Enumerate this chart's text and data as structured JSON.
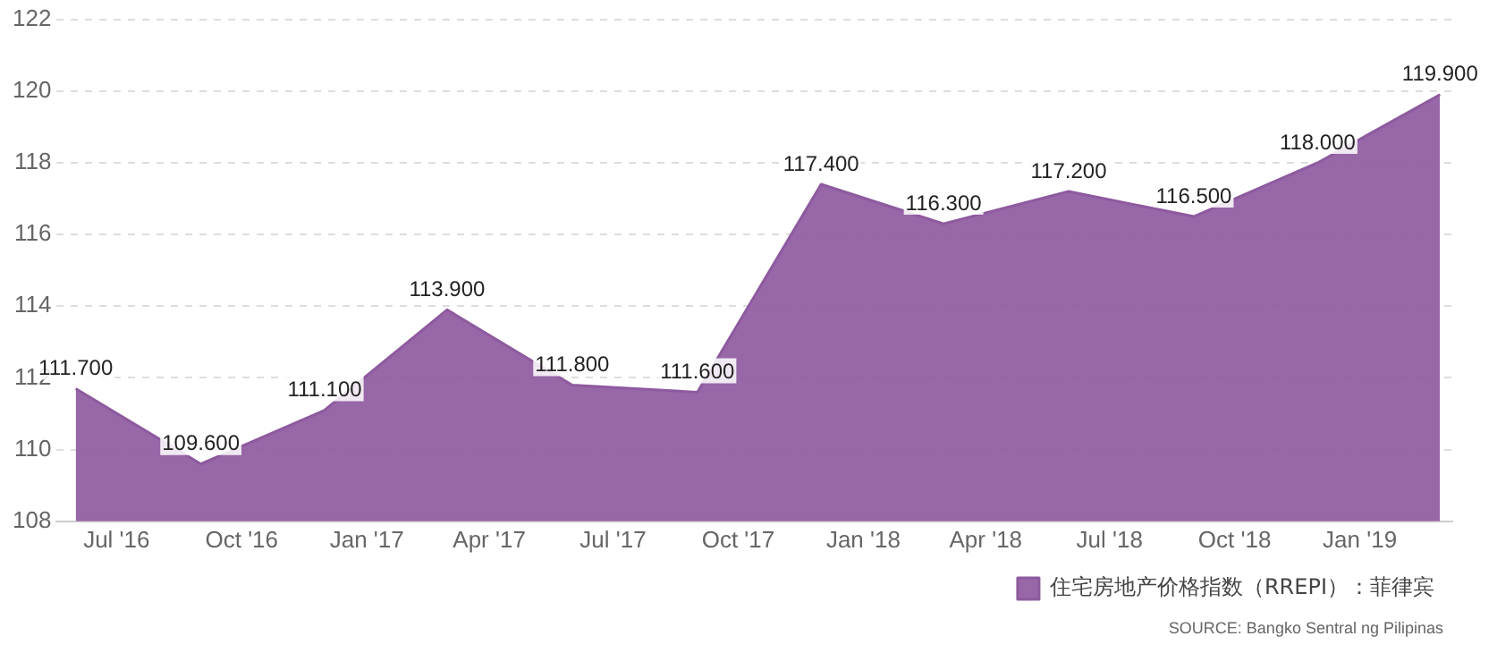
{
  "chart_data": {
    "type": "area",
    "x": [
      "2016-06",
      "2016-09",
      "2016-12",
      "2017-03",
      "2017-06",
      "2017-09",
      "2017-12",
      "2018-03",
      "2018-06",
      "2018-09",
      "2018-12",
      "2019-03"
    ],
    "series": [
      {
        "name": "住宅房地产价格指数（RREPI）：菲律宾",
        "color": "#8e5a9f",
        "values": [
          111.7,
          109.6,
          111.1,
          113.9,
          111.8,
          111.6,
          117.4,
          116.3,
          117.2,
          116.5,
          118.0,
          119.9
        ],
        "value_labels": [
          "111.700",
          "109.600",
          "111.100",
          "113.900",
          "111.800",
          "111.600",
          "117.400",
          "116.300",
          "117.200",
          "116.500",
          "118.000",
          "119.900"
        ]
      }
    ],
    "xlim": [
      "2016-05-18",
      "2019-03-10"
    ],
    "xticks": [
      {
        "value": "2016-07",
        "label": "Jul '16"
      },
      {
        "value": "2016-10",
        "label": "Oct '16"
      },
      {
        "value": "2017-01",
        "label": "Jan '17"
      },
      {
        "value": "2017-04",
        "label": "Apr '17"
      },
      {
        "value": "2017-07",
        "label": "Jul '17"
      },
      {
        "value": "2017-10",
        "label": "Oct '17"
      },
      {
        "value": "2018-01",
        "label": "Jan '18"
      },
      {
        "value": "2018-04",
        "label": "Apr '18"
      },
      {
        "value": "2018-07",
        "label": "Jul '18"
      },
      {
        "value": "2018-10",
        "label": "Oct '18"
      },
      {
        "value": "2019-01",
        "label": "Jan '19"
      }
    ],
    "ylim": [
      108,
      122
    ],
    "yticks": [
      108,
      110,
      112,
      114,
      116,
      118,
      120,
      122
    ],
    "grid": "y",
    "legend": "bottom right",
    "marker": "none",
    "annotations": [
      "SOURCE: Bangko Sentral ng Pilipinas"
    ]
  }
}
